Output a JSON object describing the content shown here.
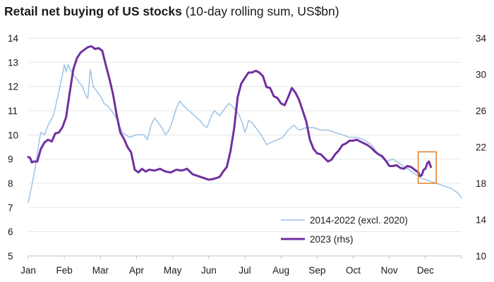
{
  "chart_data": {
    "type": "line",
    "title": "Retail net buying of US stocks",
    "subtitle": "(10-day rolling sum, US$bn)",
    "xlabel": "",
    "ylabel": "",
    "x_ticks": [
      "Jan",
      "Feb",
      "Mar",
      "Apr",
      "May",
      "Jun",
      "Jul",
      "Aug",
      "Sep",
      "Oct",
      "Nov",
      "Dec"
    ],
    "xlim": [
      0,
      12
    ],
    "y_left": {
      "lim": [
        5,
        14
      ],
      "ticks": [
        5,
        6,
        7,
        8,
        9,
        10,
        11,
        12,
        13,
        14
      ]
    },
    "y_right": {
      "lim": [
        10,
        34
      ],
      "ticks": [
        10,
        14,
        18,
        22,
        26,
        30,
        34
      ]
    },
    "grid": "horizontal",
    "legend": "bottom-right",
    "highlight": {
      "shape": "rectangle",
      "color": "#E8852E",
      "x": [
        10.8,
        11.3
      ],
      "y_left": [
        8.0,
        9.3
      ]
    },
    "series": [
      {
        "name": "2014-2022 (excl. 2020)",
        "axis": "left",
        "color": "#9DC3E6",
        "x": [
          0,
          0.1,
          0.2,
          0.3,
          0.35,
          0.45,
          0.55,
          0.7,
          0.85,
          0.95,
          1.0,
          1.05,
          1.1,
          1.2,
          1.3,
          1.4,
          1.5,
          1.6,
          1.65,
          1.72,
          1.8,
          1.9,
          2.0,
          2.1,
          2.2,
          2.3,
          2.4,
          2.5,
          2.6,
          2.8,
          3.0,
          3.2,
          3.3,
          3.4,
          3.5,
          3.6,
          3.7,
          3.8,
          3.9,
          4.0,
          4.1,
          4.2,
          4.3,
          4.45,
          4.6,
          4.75,
          4.85,
          4.95,
          5.05,
          5.15,
          5.3,
          5.45,
          5.55,
          5.65,
          5.75,
          5.85,
          5.95,
          6.0,
          6.05,
          6.1,
          6.2,
          6.3,
          6.45,
          6.6,
          6.75,
          6.9,
          7.05,
          7.2,
          7.35,
          7.5,
          7.7,
          7.9,
          8.1,
          8.3,
          8.5,
          8.7,
          8.9,
          9.1,
          9.3,
          9.5,
          9.7,
          9.9,
          10.1,
          10.3,
          10.5,
          10.7,
          10.9,
          11.1,
          11.3,
          11.5,
          11.7,
          11.9,
          12.0
        ],
        "y": [
          7.2,
          7.9,
          8.7,
          9.7,
          10.1,
          10.0,
          10.4,
          10.8,
          11.8,
          12.5,
          12.9,
          12.6,
          12.9,
          12.6,
          12.4,
          12.2,
          12.0,
          11.6,
          11.5,
          12.7,
          12.0,
          11.8,
          11.6,
          11.3,
          11.2,
          11.0,
          10.8,
          10.5,
          10.1,
          9.9,
          10.0,
          10.0,
          9.8,
          10.4,
          10.7,
          10.5,
          10.3,
          10.0,
          10.2,
          10.6,
          11.1,
          11.4,
          11.2,
          11.0,
          10.8,
          10.6,
          10.4,
          10.3,
          10.7,
          11.0,
          10.8,
          11.1,
          11.3,
          11.2,
          11.0,
          10.8,
          10.4,
          10.1,
          10.3,
          10.6,
          10.5,
          10.3,
          10.0,
          9.6,
          9.7,
          9.8,
          9.9,
          10.2,
          10.4,
          10.2,
          10.3,
          10.3,
          10.2,
          10.2,
          10.1,
          10.0,
          9.9,
          9.9,
          9.8,
          9.6,
          9.2,
          8.9,
          9.0,
          8.8,
          8.6,
          8.4,
          8.2,
          8.1,
          8.0,
          7.9,
          7.8,
          7.6,
          7.4
        ]
      },
      {
        "name": "2023 (rhs)",
        "axis": "right",
        "color": "#7030A0",
        "x": [
          0,
          0.05,
          0.1,
          0.15,
          0.25,
          0.35,
          0.45,
          0.55,
          0.65,
          0.75,
          0.85,
          0.95,
          1.05,
          1.15,
          1.25,
          1.35,
          1.45,
          1.55,
          1.65,
          1.75,
          1.85,
          1.95,
          2.05,
          2.15,
          2.25,
          2.35,
          2.45,
          2.55,
          2.65,
          2.75,
          2.85,
          2.95,
          3.05,
          3.15,
          3.25,
          3.35,
          3.5,
          3.65,
          3.8,
          3.95,
          4.1,
          4.25,
          4.4,
          4.55,
          4.7,
          4.85,
          5.0,
          5.15,
          5.3,
          5.4,
          5.5,
          5.6,
          5.7,
          5.8,
          5.9,
          6.0,
          6.1,
          6.2,
          6.3,
          6.4,
          6.5,
          6.6,
          6.7,
          6.8,
          6.9,
          7.0,
          7.1,
          7.2,
          7.3,
          7.4,
          7.5,
          7.6,
          7.7,
          7.8,
          7.9,
          8.0,
          8.1,
          8.2,
          8.3,
          8.4,
          8.5,
          8.6,
          8.7,
          8.8,
          8.9,
          9.0,
          9.1,
          9.2,
          9.3,
          9.4,
          9.5,
          9.6,
          9.7,
          9.8,
          9.9,
          10.0,
          10.1,
          10.2,
          10.3,
          10.4,
          10.5,
          10.6,
          10.7,
          10.8,
          10.85,
          10.9,
          10.95,
          11.0,
          11.05,
          11.1,
          11.15
        ],
        "y": [
          20.9,
          20.8,
          20.3,
          20.4,
          20.4,
          21.8,
          22.5,
          22.8,
          22.6,
          23.5,
          23.6,
          24.2,
          25.3,
          28.0,
          30.6,
          31.8,
          32.4,
          32.7,
          33.0,
          33.1,
          32.8,
          32.9,
          32.6,
          31.0,
          29.5,
          27.8,
          25.5,
          23.6,
          22.9,
          22.0,
          21.4,
          19.5,
          19.2,
          19.6,
          19.3,
          19.5,
          19.4,
          19.6,
          19.3,
          19.2,
          19.5,
          19.4,
          19.6,
          19.0,
          18.8,
          18.6,
          18.4,
          18.5,
          18.7,
          19.3,
          19.8,
          21.5,
          24.0,
          27.5,
          29.0,
          29.6,
          30.2,
          30.2,
          30.4,
          30.2,
          29.8,
          28.6,
          28.5,
          27.6,
          27.4,
          26.8,
          26.6,
          27.5,
          28.5,
          28.0,
          27.2,
          26.0,
          24.8,
          22.8,
          21.8,
          21.3,
          21.2,
          20.8,
          20.4,
          20.6,
          21.2,
          21.6,
          22.2,
          22.4,
          22.7,
          22.7,
          22.8,
          22.6,
          22.4,
          22.2,
          21.9,
          21.5,
          21.2,
          21.0,
          20.5,
          19.9,
          19.9,
          20.0,
          19.7,
          19.6,
          19.9,
          19.8,
          19.5,
          19.2,
          18.8,
          18.9,
          19.5,
          19.6,
          20.2,
          20.4,
          19.8
        ]
      }
    ]
  }
}
